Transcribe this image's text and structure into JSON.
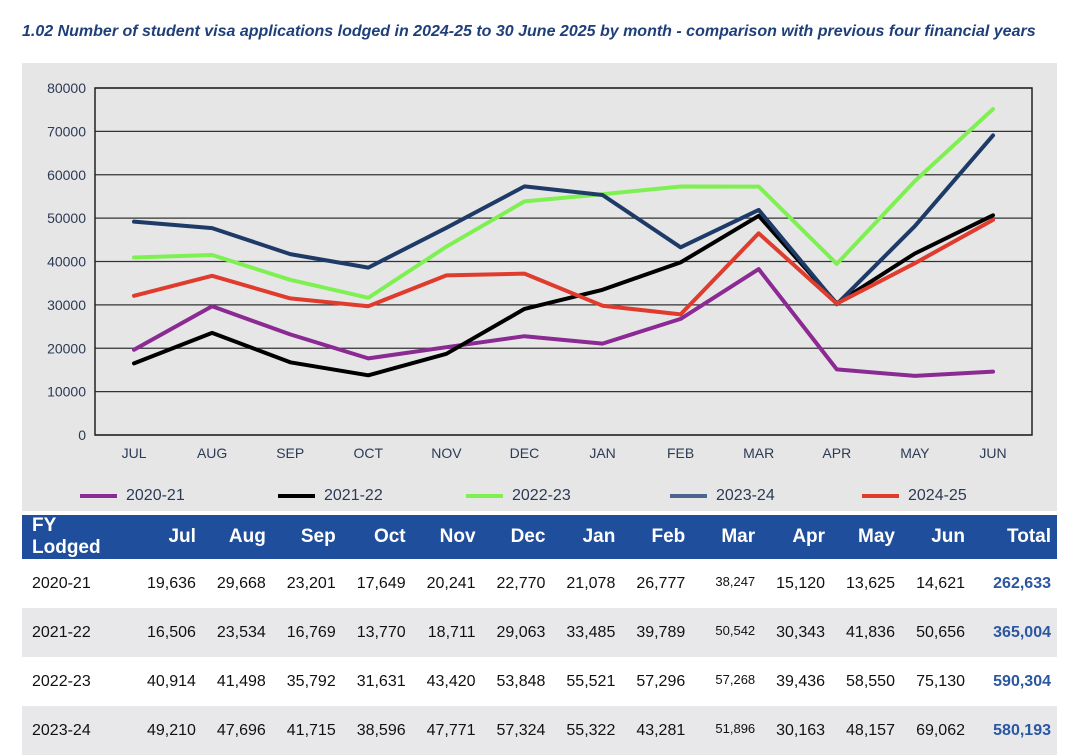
{
  "title": "1.02 Number of student visa applications lodged in 2024-25 to 30 June 2025 by month - comparison with previous four financial years",
  "chart_data": {
    "type": "line",
    "title": "1.02 Number of student visa applications lodged in 2024-25 to 30 June 2025 by month - comparison with previous four financial years",
    "xlabel": "",
    "ylabel": "",
    "categories": [
      "JUL",
      "AUG",
      "SEP",
      "OCT",
      "NOV",
      "DEC",
      "JAN",
      "FEB",
      "MAR",
      "APR",
      "MAY",
      "JUN"
    ],
    "ylim": [
      0,
      80000
    ],
    "yticks": [
      0,
      10000,
      20000,
      30000,
      40000,
      50000,
      60000,
      70000,
      80000
    ],
    "ytick_labels": [
      "0",
      "10000",
      "20000",
      "30000",
      "40000",
      "50000",
      "60000",
      "70000",
      "80000"
    ],
    "grid": true,
    "legend_position": "bottom",
    "series": [
      {
        "name": "2020-21",
        "color": "#8b2a93",
        "values": [
          19636,
          29668,
          23201,
          17649,
          20241,
          22770,
          21078,
          26777,
          38247,
          15120,
          13625,
          14621
        ]
      },
      {
        "name": "2021-22",
        "color": "#000000",
        "values": [
          16506,
          23534,
          16769,
          13770,
          18711,
          29063,
          33485,
          39789,
          50542,
          30343,
          41836,
          50656
        ]
      },
      {
        "name": "2022-23",
        "color": "#7ef052",
        "values": [
          40914,
          41498,
          35792,
          31631,
          43420,
          53848,
          55521,
          57296,
          57268,
          39436,
          58550,
          75130
        ]
      },
      {
        "name": "2023-24",
        "color": "#1e3a66",
        "legend_color": "#4a6590",
        "values": [
          49210,
          47696,
          41715,
          38596,
          47771,
          57324,
          55322,
          43281,
          51896,
          30163,
          48157,
          69062
        ]
      },
      {
        "name": "2024-25",
        "color": "#e03c2e",
        "values": [
          32100,
          36700,
          31500,
          29700,
          36800,
          37200,
          29800,
          27800,
          46500,
          30300,
          39600,
          49600
        ]
      }
    ]
  },
  "table": {
    "headers": [
      "FY Lodged",
      "Jul",
      "Aug",
      "Sep",
      "Oct",
      "Nov",
      "Dec",
      "Jan",
      "Feb",
      "Mar",
      "Apr",
      "May",
      "Jun",
      "Total"
    ],
    "rows": [
      [
        "2020-21",
        "19,636",
        "29,668",
        "23,201",
        "17,649",
        "20,241",
        "22,770",
        "21,078",
        "26,777",
        "38,247",
        "15,120",
        "13,625",
        "14,621",
        "262,633"
      ],
      [
        "2021-22",
        "16,506",
        "23,534",
        "16,769",
        "13,770",
        "18,711",
        "29,063",
        "33,485",
        "39,789",
        "50,542",
        "30,343",
        "41,836",
        "50,656",
        "365,004"
      ],
      [
        "2022-23",
        "40,914",
        "41,498",
        "35,792",
        "31,631",
        "43,420",
        "53,848",
        "55,521",
        "57,296",
        "57,268",
        "39,436",
        "58,550",
        "75,130",
        "590,304"
      ],
      [
        "2023-24",
        "49,210",
        "47,696",
        "41,715",
        "38,596",
        "47,771",
        "57,324",
        "55,322",
        "43,281",
        "51,896",
        "30,163",
        "48,157",
        "69,062",
        "580,193"
      ]
    ]
  }
}
